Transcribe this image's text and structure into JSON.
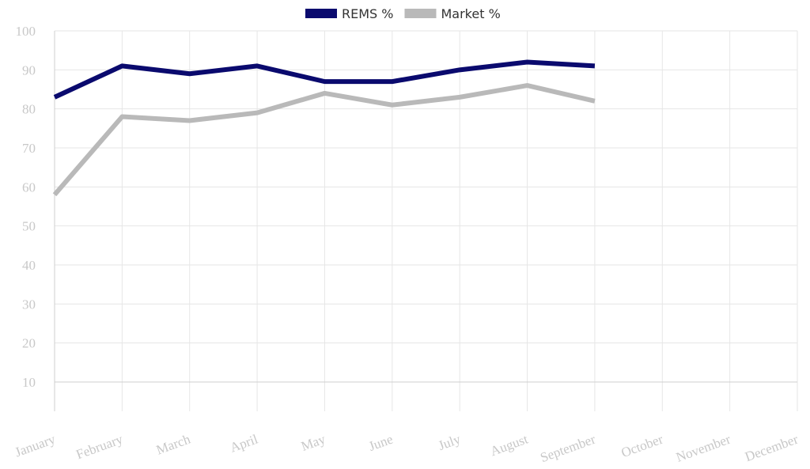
{
  "chart_data": {
    "type": "line",
    "categories": [
      "January",
      "February",
      "March",
      "April",
      "May",
      "June",
      "July",
      "August",
      "September",
      "October",
      "November",
      "December"
    ],
    "series": [
      {
        "name": "REMS %",
        "color": "#0a0a6e",
        "values": [
          83,
          91,
          89,
          91,
          87,
          87,
          90,
          92,
          91,
          null,
          null,
          null
        ]
      },
      {
        "name": "Market %",
        "color": "#b9b9b9",
        "values": [
          58,
          78,
          77,
          79,
          84,
          81,
          83,
          86,
          82,
          null,
          null,
          null
        ]
      }
    ],
    "ylim": [
      2.5,
      100
    ],
    "yticks": [
      10,
      20,
      30,
      40,
      50,
      60,
      70,
      80,
      90,
      100
    ],
    "grid": true,
    "legend": "top"
  }
}
